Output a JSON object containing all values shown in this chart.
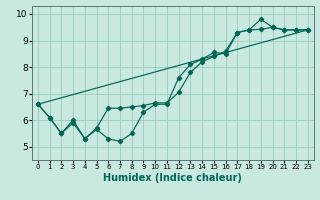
{
  "xlabel": "Humidex (Indice chaleur)",
  "bg_color": "#c8e8e0",
  "grid_color": "#99ccbb",
  "line_color": "#006655",
  "spine_color": "#557777",
  "xlim": [
    -0.5,
    23.5
  ],
  "ylim": [
    4.5,
    10.3
  ],
  "xticks": [
    0,
    1,
    2,
    3,
    4,
    5,
    6,
    7,
    8,
    9,
    10,
    11,
    12,
    13,
    14,
    15,
    16,
    17,
    18,
    19,
    20,
    21,
    22,
    23
  ],
  "yticks": [
    5,
    6,
    7,
    8,
    9,
    10
  ],
  "line1_x": [
    0,
    1,
    2,
    3,
    4,
    5,
    6,
    7,
    8,
    9,
    10,
    11,
    12,
    13,
    14,
    15,
    16,
    17,
    18,
    19,
    20,
    21,
    22,
    23
  ],
  "line1_y": [
    6.6,
    6.1,
    5.5,
    5.9,
    5.3,
    5.65,
    5.3,
    5.2,
    5.5,
    6.3,
    6.6,
    6.6,
    7.6,
    8.1,
    8.3,
    8.55,
    8.5,
    9.3,
    9.4,
    9.8,
    9.5,
    9.4,
    9.4,
    9.4
  ],
  "line2_x": [
    0,
    1,
    2,
    3,
    4,
    5,
    6,
    7,
    8,
    9,
    10,
    11,
    12,
    13,
    14,
    15,
    16,
    17,
    18,
    19,
    20,
    21,
    22,
    23
  ],
  "line2_y": [
    6.6,
    6.1,
    5.5,
    6.0,
    5.3,
    5.7,
    6.45,
    6.45,
    6.5,
    6.55,
    6.65,
    6.65,
    7.05,
    7.8,
    8.2,
    8.4,
    8.6,
    9.3,
    9.4,
    9.42,
    9.5,
    9.4,
    9.4,
    9.4
  ],
  "line3_x": [
    0,
    23
  ],
  "line3_y": [
    6.6,
    9.4
  ],
  "xlabel_fontsize": 7,
  "tick_fontsize_x": 5,
  "tick_fontsize_y": 6.5
}
